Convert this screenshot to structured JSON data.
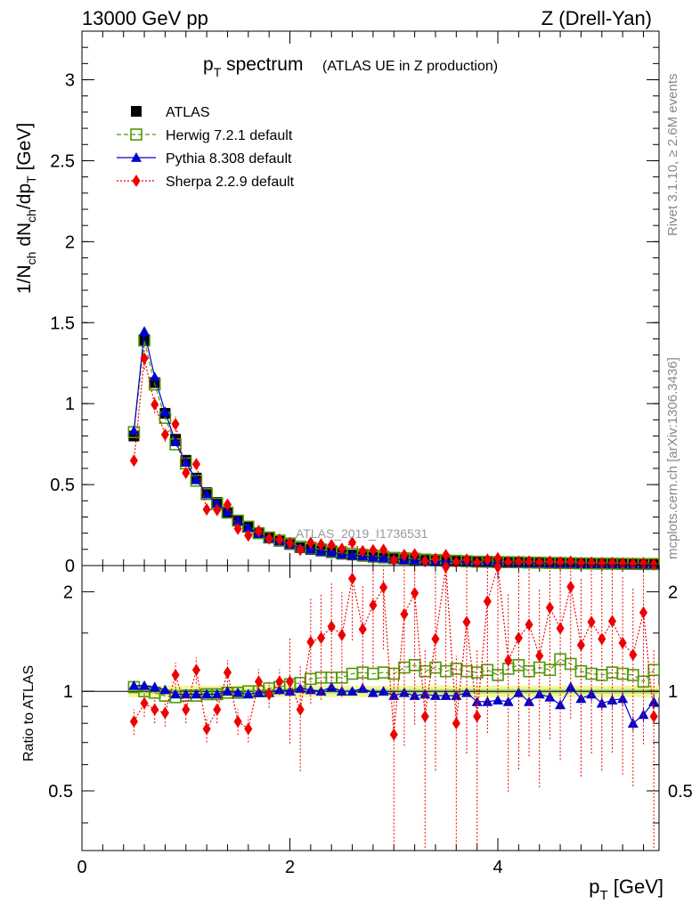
{
  "header": {
    "left": "13000 GeV pp",
    "right": "Z (Drell-Yan)"
  },
  "side_labels": {
    "rivet": "Rivet 3.1.10, ≥ 2.6M events",
    "mcplots": "mcplots.cern.ch [arXiv:1306.3436]"
  },
  "chart_data": {
    "type": "scatter",
    "title": {
      "main_p": "p",
      "main_sub": "T",
      "main_rest": " spectrum",
      "suffix": "(ATLAS UE in Z production)"
    },
    "watermark": "ATLAS_2019_I1736531",
    "xlabel": {
      "p": "p",
      "sub": "T",
      "unit": " [GeV]"
    },
    "ylabel_top": "1/N_ch dN_ch/dp_T [GeV]",
    "ylabel_ratio": "Ratio to ATLAS",
    "xlim": [
      0,
      5.55
    ],
    "ylim_top": [
      0,
      3.3
    ],
    "ylim_ratio": [
      0.33,
      2.4
    ],
    "ratio_scale": "log",
    "x_ticks": [
      "0",
      "2",
      "4"
    ],
    "y_ticks_top": [
      "0",
      "0.5",
      "1",
      "1.5",
      "2",
      "2.5",
      "3"
    ],
    "y_ticks_ratio": [
      "0.5",
      "1",
      "2"
    ],
    "x": [
      0.5,
      0.6,
      0.7,
      0.8,
      0.9,
      1.0,
      1.1,
      1.2,
      1.3,
      1.4,
      1.5,
      1.6,
      1.7,
      1.8,
      1.9,
      2.0,
      2.1,
      2.2,
      2.3,
      2.4,
      2.5,
      2.6,
      2.7,
      2.8,
      2.9,
      3.0,
      3.1,
      3.2,
      3.3,
      3.4,
      3.5,
      3.6,
      3.7,
      3.8,
      3.9,
      4.0,
      4.1,
      4.2,
      4.3,
      4.4,
      4.5,
      4.6,
      4.7,
      4.8,
      4.9,
      5.0,
      5.1,
      5.2,
      5.3,
      5.4,
      5.5
    ],
    "series": [
      {
        "name": "ATLAS",
        "color": "#000000",
        "marker": "square",
        "values": [
          0.8,
          1.39,
          1.13,
          0.94,
          0.78,
          0.65,
          0.54,
          0.45,
          0.39,
          0.33,
          0.28,
          0.24,
          0.2,
          0.17,
          0.15,
          0.13,
          0.11,
          0.1,
          0.09,
          0.08,
          0.07,
          0.065,
          0.058,
          0.052,
          0.047,
          0.042,
          0.038,
          0.035,
          0.032,
          0.029,
          0.027,
          0.025,
          0.023,
          0.021,
          0.02,
          0.019,
          0.018,
          0.017,
          0.016,
          0.015,
          0.014,
          0.013,
          0.012,
          0.0115,
          0.011,
          0.0105,
          0.01,
          0.0095,
          0.009,
          0.0085,
          0.008
        ],
        "ratio": [
          1.0,
          1.0,
          1.0,
          1.0,
          1.0,
          1.0,
          1.0,
          1.0,
          1.0,
          1.0,
          1.0,
          1.0,
          1.0,
          1.0,
          1.0,
          1.0,
          1.0,
          1.0,
          1.0,
          1.0,
          1.0,
          1.0,
          1.0,
          1.0,
          1.0,
          1.0,
          1.0,
          1.0,
          1.0,
          1.0,
          1.0,
          1.0,
          1.0,
          1.0,
          1.0,
          1.0,
          1.0,
          1.0,
          1.0,
          1.0,
          1.0,
          1.0,
          1.0,
          1.0,
          1.0,
          1.0,
          1.0,
          1.0,
          1.0,
          1.0,
          1.0
        ]
      },
      {
        "name": "Herwig 7.2.1 default",
        "color": "#4e9a06",
        "marker": "open-square",
        "line": "dashed",
        "ratio": [
          1.03,
          1.0,
          0.99,
          0.97,
          0.96,
          0.97,
          0.97,
          0.98,
          0.98,
          0.99,
          0.99,
          1.0,
          1.0,
          1.02,
          1.03,
          1.05,
          1.06,
          1.09,
          1.1,
          1.1,
          1.1,
          1.13,
          1.14,
          1.13,
          1.14,
          1.13,
          1.18,
          1.2,
          1.15,
          1.18,
          1.15,
          1.17,
          1.15,
          1.14,
          1.16,
          1.12,
          1.17,
          1.2,
          1.15,
          1.18,
          1.16,
          1.25,
          1.21,
          1.15,
          1.13,
          1.12,
          1.14,
          1.13,
          1.12,
          1.07,
          1.16
        ]
      },
      {
        "name": "Pythia 8.308 default",
        "color": "#0000cc",
        "marker": "triangle",
        "line": "solid",
        "ratio": [
          1.04,
          1.04,
          1.03,
          1.01,
          0.98,
          0.98,
          0.98,
          0.98,
          0.98,
          1.0,
          0.99,
          0.98,
          0.99,
          0.99,
          1.01,
          1.0,
          1.02,
          1.01,
          1.0,
          1.03,
          1.0,
          1.0,
          1.02,
          0.99,
          1.0,
          0.97,
          0.99,
          0.97,
          0.98,
          0.97,
          0.97,
          0.97,
          0.99,
          0.93,
          0.93,
          0.94,
          0.93,
          0.99,
          0.93,
          0.98,
          0.96,
          0.91,
          1.03,
          0.95,
          0.98,
          0.92,
          0.94,
          0.95,
          0.8,
          0.85,
          0.93
        ]
      },
      {
        "name": "Sherpa 2.2.9 default",
        "color": "#ee0000",
        "marker": "diamond",
        "line": "dotted",
        "ratio": [
          0.81,
          0.92,
          0.88,
          0.86,
          1.12,
          0.88,
          1.16,
          0.77,
          0.88,
          1.14,
          0.81,
          0.77,
          1.07,
          0.98,
          1.07,
          1.07,
          0.88,
          1.41,
          1.45,
          1.57,
          1.48,
          2.19,
          1.54,
          1.82,
          2.06,
          0.74,
          1.71,
          1.98,
          0.84,
          1.44,
          2.4,
          0.8,
          1.62,
          0.84,
          1.87,
          2.4,
          1.24,
          1.45,
          1.59,
          1.28,
          1.79,
          1.55,
          2.07,
          1.38,
          1.62,
          1.44,
          1.63,
          1.4,
          1.29,
          1.73,
          0.84
        ]
      }
    ],
    "legend": {
      "location": "top-left"
    }
  }
}
